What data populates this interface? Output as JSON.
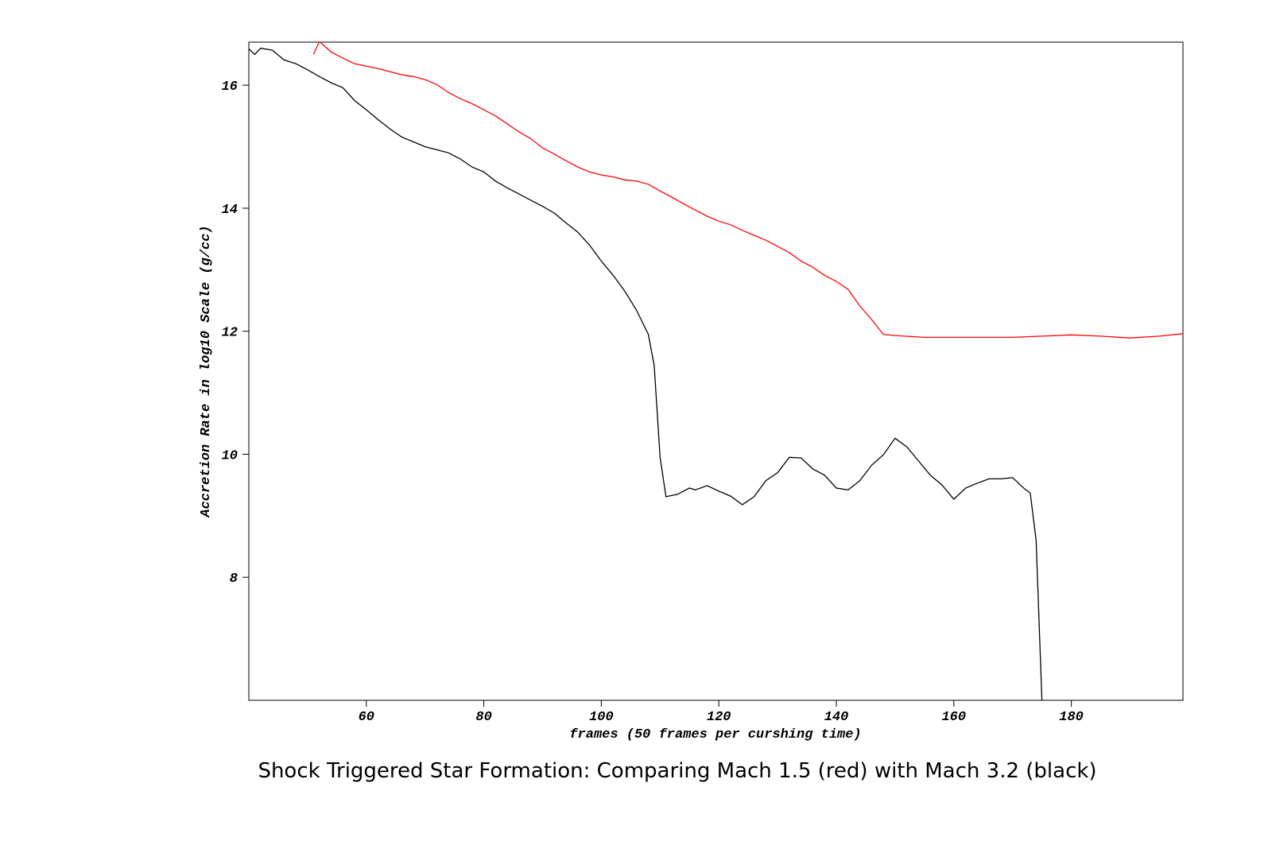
{
  "chart_data": {
    "type": "line",
    "title": "Shock Triggered Star Formation: Comparing Mach 1.5 (red) with Mach 3.2 (black)",
    "x_label": "frames (50 frames per curshing time)",
    "y_label": "Accretion Rate in log10 Scale (g/cc)",
    "xlim": [
      40,
      199
    ],
    "ylim": [
      6,
      16.7
    ],
    "xticks": [
      60,
      80,
      100,
      120,
      140,
      160,
      180
    ],
    "yticks": [
      8,
      10,
      12,
      14,
      16
    ],
    "series": [
      {
        "color": "#ff0000",
        "x": [
          51,
          52,
          54,
          56,
          58,
          60,
          62,
          64,
          66,
          68,
          70,
          72,
          74,
          76,
          78,
          80,
          82,
          84,
          86,
          88,
          90,
          92,
          94,
          96,
          98,
          100,
          102,
          104,
          106,
          108,
          110,
          112,
          114,
          116,
          118,
          120,
          122,
          124,
          126,
          128,
          130,
          132,
          134,
          136,
          138,
          140,
          142,
          144,
          146,
          148,
          150,
          155,
          160,
          165,
          170,
          175,
          180,
          185,
          190,
          195,
          199
        ],
        "values": [
          16.5,
          16.71,
          16.54,
          16.44,
          16.35,
          16.31,
          16.27,
          16.22,
          16.17,
          16.14,
          16.09,
          16.01,
          15.88,
          15.78,
          15.7,
          15.6,
          15.5,
          15.37,
          15.24,
          15.13,
          14.98,
          14.88,
          14.77,
          14.67,
          14.59,
          14.54,
          14.51,
          14.46,
          14.44,
          14.39,
          14.28,
          14.18,
          14.07,
          13.97,
          13.87,
          13.79,
          13.73,
          13.64,
          13.56,
          13.48,
          13.38,
          13.28,
          13.14,
          13.04,
          12.91,
          12.81,
          12.68,
          12.41,
          12.19,
          11.95,
          11.93,
          11.9,
          11.9,
          11.9,
          11.9,
          11.92,
          11.94,
          11.92,
          11.89,
          11.92,
          11.96
        ]
      },
      {
        "color": "#000000",
        "x": [
          40,
          41,
          42,
          44,
          46,
          48,
          50,
          52,
          54,
          56,
          58,
          60,
          62,
          64,
          66,
          68,
          70,
          72,
          74,
          76,
          78,
          80,
          82,
          84,
          86,
          88,
          90,
          92,
          94,
          96,
          98,
          100,
          102,
          104,
          106,
          108,
          109,
          110,
          111,
          113,
          115,
          116,
          118,
          120,
          122,
          124,
          126,
          128,
          130,
          132,
          134,
          136,
          138,
          140,
          142,
          144,
          146,
          148,
          150,
          152,
          154,
          156,
          158,
          160,
          162,
          164,
          166,
          168,
          170,
          172,
          173,
          174,
          175
        ],
        "values": [
          16.59,
          16.5,
          16.6,
          16.57,
          16.41,
          16.35,
          16.25,
          16.14,
          16.04,
          15.96,
          15.75,
          15.6,
          15.44,
          15.29,
          15.16,
          15.08,
          15.0,
          14.95,
          14.9,
          14.8,
          14.67,
          14.59,
          14.44,
          14.33,
          14.23,
          14.13,
          14.03,
          13.92,
          13.76,
          13.61,
          13.4,
          13.14,
          12.91,
          12.65,
          12.34,
          11.95,
          11.44,
          9.95,
          9.31,
          9.35,
          9.45,
          9.42,
          9.49,
          9.4,
          9.32,
          9.18,
          9.31,
          9.57,
          9.7,
          9.95,
          9.94,
          9.76,
          9.66,
          9.45,
          9.42,
          9.57,
          9.82,
          9.99,
          10.26,
          10.12,
          9.89,
          9.66,
          9.5,
          9.27,
          9.45,
          9.53,
          9.6,
          9.6,
          9.62,
          9.44,
          9.37,
          8.6,
          6.0
        ]
      }
    ]
  }
}
